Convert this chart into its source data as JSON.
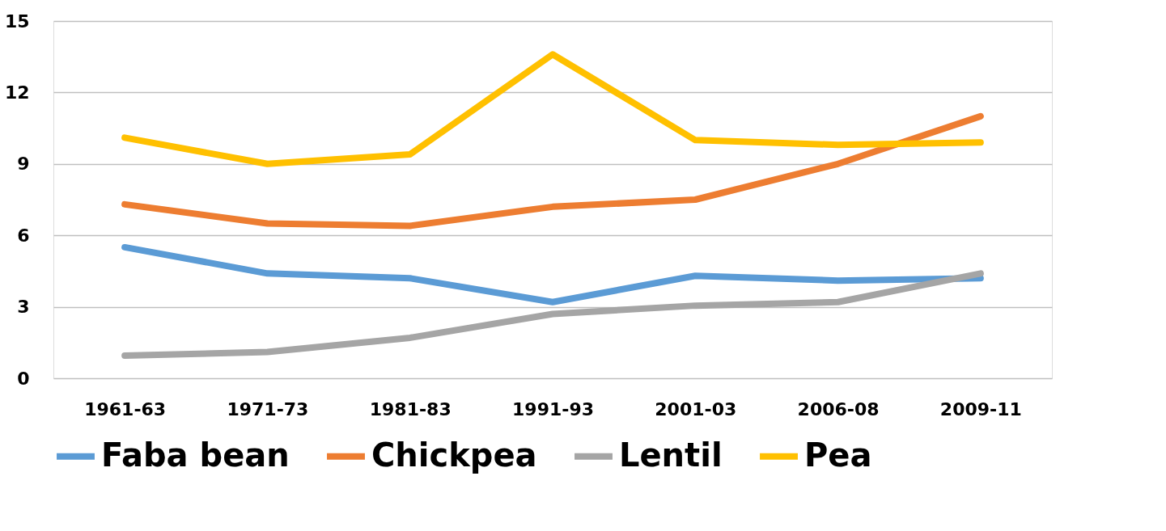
{
  "chart_data": {
    "type": "line",
    "categories": [
      "1961-63",
      "1971-73",
      "1981-83",
      "1991-93",
      "2001-03",
      "2006-08",
      "2009-11"
    ],
    "series": [
      {
        "name": "Faba bean",
        "color": "#5b9bd5",
        "values": [
          5.5,
          4.4,
          4.2,
          3.2,
          4.3,
          4.1,
          4.2
        ]
      },
      {
        "name": "Chickpea",
        "color": "#ed7d31",
        "values": [
          7.3,
          6.5,
          6.4,
          7.2,
          7.5,
          9.0,
          11.0
        ]
      },
      {
        "name": "Lentil",
        "color": "#a5a5a5",
        "values": [
          0.95,
          1.1,
          1.7,
          2.7,
          3.05,
          3.2,
          4.4
        ]
      },
      {
        "name": "Pea",
        "color": "#ffc000",
        "values": [
          10.1,
          9.0,
          9.4,
          13.6,
          10.0,
          9.8,
          9.9
        ]
      }
    ],
    "ylim": [
      0,
      15
    ],
    "yticks": [
      0,
      3,
      6,
      9,
      12,
      15
    ],
    "grid": "y",
    "legend": "bottom",
    "marker": "none",
    "line_style": "solid"
  }
}
